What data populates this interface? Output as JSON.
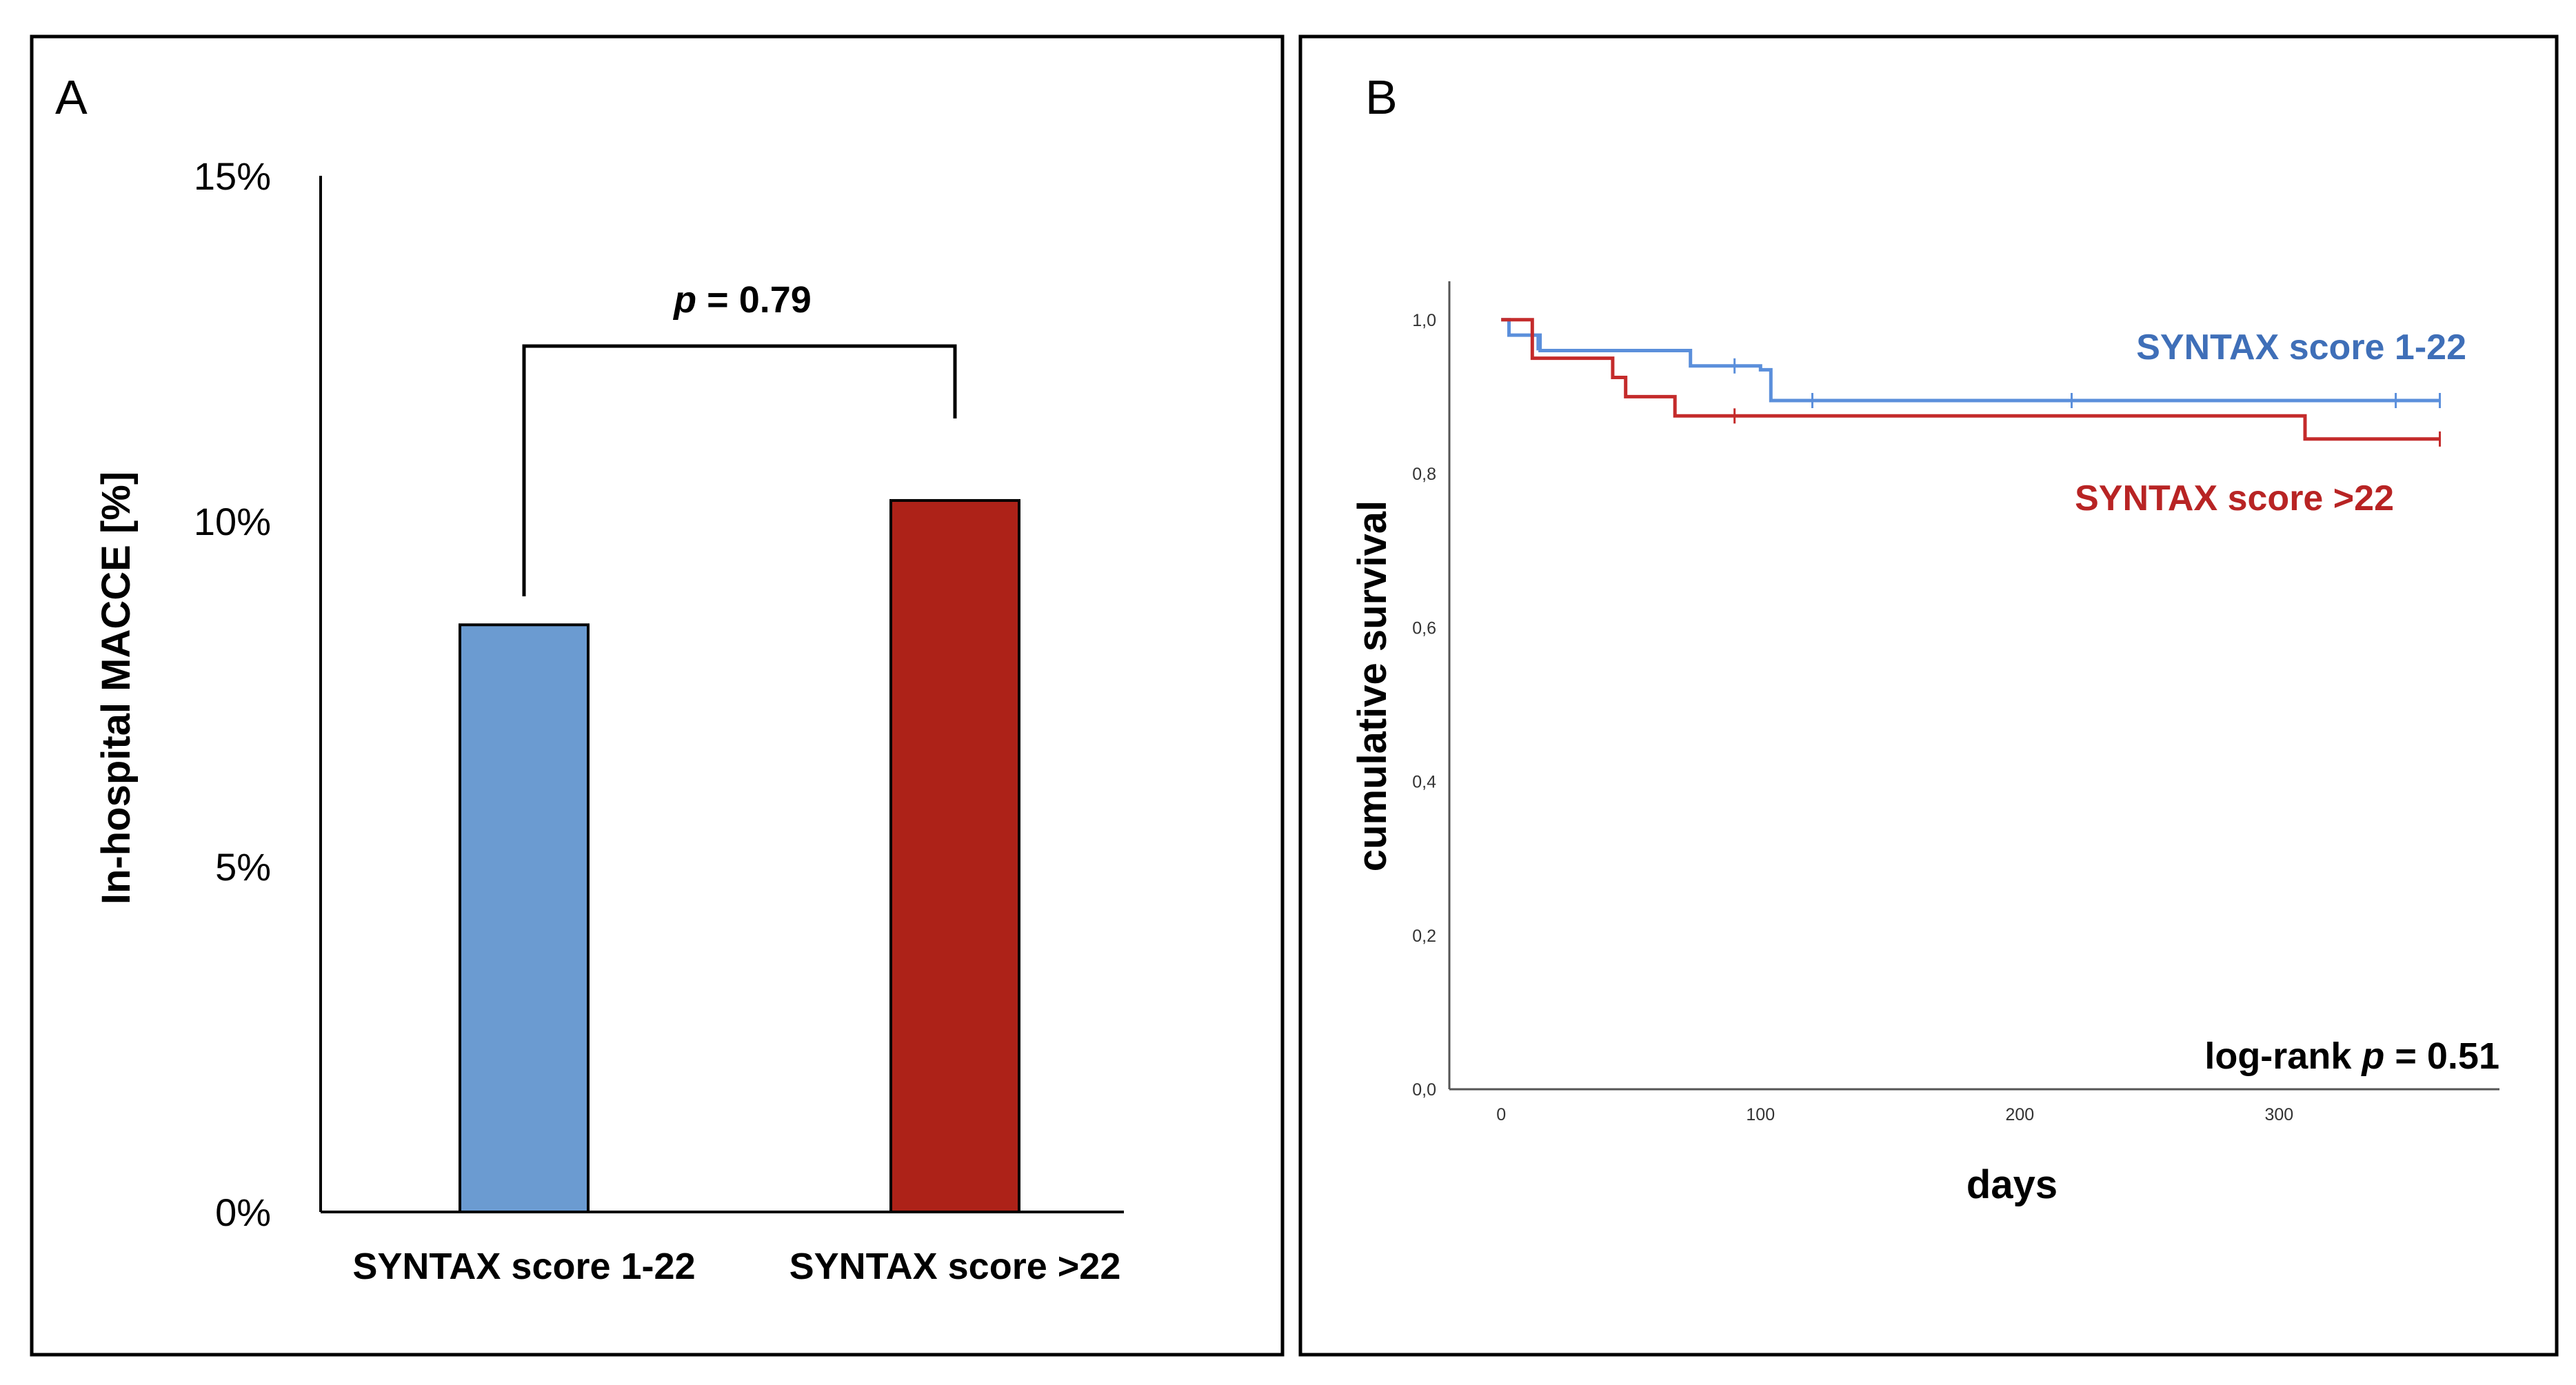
{
  "panels": {
    "a": {
      "letter": "A"
    },
    "b": {
      "letter": "B"
    }
  },
  "chart_data": [
    {
      "type": "bar",
      "panel": "A",
      "categories": [
        "SYNTAX score 1-22",
        "SYNTAX score >22"
      ],
      "values": [
        8.5,
        10.3
      ],
      "colors": [
        "#6b9bd1",
        "#ad2218"
      ],
      "ylabel": "In-hospital MACCE [%]",
      "ylim": [
        0,
        15
      ],
      "yticks": [
        0,
        5,
        10,
        15
      ],
      "ytick_labels": [
        "0%",
        "5%",
        "10%",
        "15%"
      ],
      "annotation": {
        "p_prefix": "p",
        "p_suffix": " = 0.79"
      }
    },
    {
      "type": "line",
      "subtype": "kaplan-meier step",
      "panel": "B",
      "xlabel": "days",
      "ylabel": "cumulative survival",
      "xlim": [
        -20,
        385
      ],
      "ylim": [
        0,
        1.05
      ],
      "xticks": [
        0,
        100,
        200,
        300
      ],
      "xtick_labels": [
        "0",
        "100",
        "200",
        "300"
      ],
      "yticks": [
        0,
        0.2,
        0.4,
        0.6,
        0.8,
        1.0
      ],
      "ytick_labels": [
        "0,0",
        "0,2",
        "0,4",
        "0,6",
        "0,8",
        "1,0"
      ],
      "series": [
        {
          "name": "SYNTAX score 1-22",
          "color": "#5b8fdb",
          "steps": [
            [
              0,
              1.0
            ],
            [
              3,
              0.98
            ],
            [
              15,
              0.96
            ],
            [
              73,
              0.94
            ],
            [
              100,
              0.935
            ],
            [
              104,
              0.895
            ],
            [
              362,
              0.895
            ]
          ],
          "censored": [
            [
              14,
              0.97
            ],
            [
              90,
              0.94
            ],
            [
              120,
              0.895
            ],
            [
              220,
              0.895
            ],
            [
              345,
              0.895
            ],
            [
              362,
              0.895
            ]
          ]
        },
        {
          "name": "SYNTAX score >22",
          "color": "#c42b2b",
          "steps": [
            [
              0,
              1.0
            ],
            [
              12,
              0.95
            ],
            [
              43,
              0.925
            ],
            [
              48,
              0.9
            ],
            [
              67,
              0.875
            ],
            [
              310,
              0.845
            ],
            [
              362,
              0.845
            ]
          ],
          "censored": [
            [
              90,
              0.875
            ],
            [
              362,
              0.845
            ]
          ]
        }
      ],
      "annotation": {
        "prefix": "log-rank ",
        "p": "p",
        "suffix": " = 0.51"
      }
    }
  ]
}
